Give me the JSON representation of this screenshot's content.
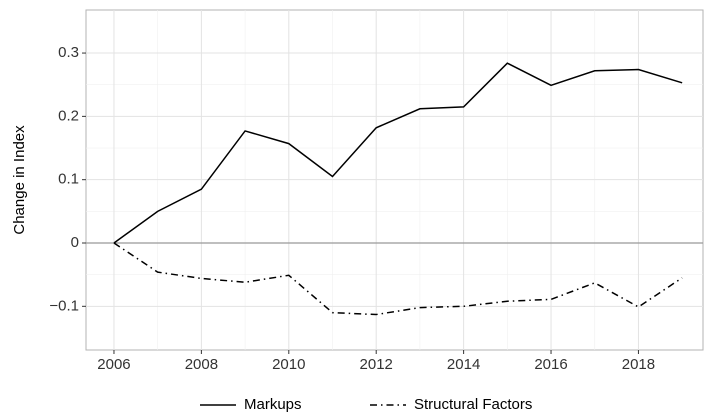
{
  "chart_data": {
    "type": "line",
    "y_label": "Change in Index",
    "x": [
      2006,
      2007,
      2008,
      2009,
      2010,
      2011,
      2012,
      2013,
      2014,
      2015,
      2016,
      2017,
      2018,
      2019
    ],
    "series": [
      {
        "name": "Markups",
        "color": "#000000",
        "linestyle": "solid",
        "values": [
          0,
          0.05,
          0.085,
          0.177,
          0.157,
          0.105,
          0.182,
          0.212,
          0.215,
          0.284,
          0.249,
          0.272,
          0.274,
          0.253
        ]
      },
      {
        "name": "Structural Factors",
        "color": "#000000",
        "linestyle": "dotdash",
        "values": [
          0,
          -0.046,
          -0.056,
          -0.062,
          -0.051,
          -0.11,
          -0.113,
          -0.102,
          -0.1,
          -0.092,
          -0.089,
          -0.063,
          -0.101,
          -0.055
        ]
      }
    ],
    "xlim": [
      2005.36,
      2019.5
    ],
    "xticks": [
      2006,
      2008,
      2010,
      2012,
      2014,
      2016,
      2018
    ],
    "ylim": [
      -0.169,
      0.368
    ],
    "yticks": [
      {
        "value": -0.1,
        "label": "−0.1"
      },
      0,
      0.1,
      0.2,
      0.3
    ],
    "grid": true,
    "zero_line": true,
    "legend": "bottom"
  }
}
